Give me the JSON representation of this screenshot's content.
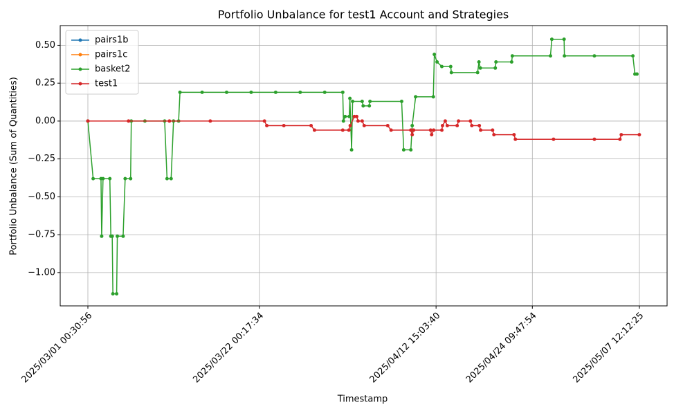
{
  "chart_data": {
    "type": "line",
    "title": "Portfolio Unbalance for test1 Account and Strategies",
    "x_label": "Timestamp",
    "y_label": "Portfolio Unbalance (Sum of Quantities)",
    "grid": true,
    "legend": "upper left",
    "xlim": [
      "2025/02/25 15:15:00",
      "2025/05/10 21:30:00"
    ],
    "xticks": [
      "2025/03/01 00:30:56",
      "2025/03/22 00:17:34",
      "2025/04/12 15:03:40",
      "2025/04/24 09:47:54",
      "2025/05/07 12:12:25"
    ],
    "ylim": [
      -1.22,
      0.63
    ],
    "yticks": [
      {
        "value": 0.5,
        "label": "0.50"
      },
      {
        "value": 0.25,
        "label": "0.25"
      },
      {
        "value": 0,
        "label": "0.00"
      },
      {
        "value": -0.25,
        "label": "−0.25"
      },
      {
        "value": -0.5,
        "label": "−0.50"
      },
      {
        "value": -0.75,
        "label": "−0.75"
      },
      {
        "value": -1.0,
        "label": "−1.00"
      }
    ],
    "series": [
      {
        "name": "pairs1b",
        "color": "#1f77b4",
        "x": [],
        "values": []
      },
      {
        "name": "pairs1c",
        "color": "#ff7f0e",
        "x": [],
        "values": []
      },
      {
        "name": "basket2",
        "color": "#2ca02c",
        "x": [
          "2025/03/01 00:30:56",
          "2025/03/01 16:00:00",
          "2025/03/02 15:00:00",
          "2025/03/02 17:00:00",
          "2025/03/02 21:00:00",
          "2025/03/03 17:00:00",
          "2025/03/03 20:00:00",
          "2025/03/04 00:00:00",
          "2025/03/04 02:00:00",
          "2025/03/04 13:00:00",
          "2025/03/04 15:00:00",
          "2025/03/05 08:00:00",
          "2025/03/05 14:00:00",
          "2025/03/06 06:00:00",
          "2025/03/06 08:00:00",
          "2025/03/08 00:00:00",
          "2025/03/10 10:00:00",
          "2025/03/10 17:00:00",
          "2025/03/11 05:00:00",
          "2025/03/11 12:00:00",
          "2025/03/12 03:00:00",
          "2025/03/12 07:00:00",
          "2025/03/15 00:00:00",
          "2025/03/18 00:00:00",
          "2025/03/21 00:00:00",
          "2025/03/24 00:00:00",
          "2025/03/27 00:00:00",
          "2025/03/30 00:00:00",
          "2025/04/01 05:00:00",
          "2025/04/01 07:00:00",
          "2025/04/01 12:00:00",
          "2025/04/02 00:00:00",
          "2025/04/02 02:00:00",
          "2025/04/02 07:00:00",
          "2025/04/02 10:00:00",
          "2025/04/03 14:00:00",
          "2025/04/03 17:00:00",
          "2025/04/04 11:00:00",
          "2025/04/04 13:00:00",
          "2025/04/08 10:00:00",
          "2025/04/08 16:00:00",
          "2025/04/09 13:00:00",
          "2025/04/09 17:00:00",
          "2025/04/10 03:00:00",
          "2025/04/12 07:00:00",
          "2025/04/12 10:00:00",
          "2025/04/12 18:00:00",
          "2025/04/13 08:00:00",
          "2025/04/14 10:00:00",
          "2025/04/14 12:00:00",
          "2025/04/17 17:00:00",
          "2025/04/17 21:00:00",
          "2025/04/18 01:00:00",
          "2025/04/19 21:00:00",
          "2025/04/19 23:00:00",
          "2025/04/21 21:00:00",
          "2025/04/21 23:00:00",
          "2025/04/26 15:00:00",
          "2025/04/26 19:00:00",
          "2025/04/28 07:00:00",
          "2025/04/28 08:00:00",
          "2025/05/02 00:00:00",
          "2025/05/06 17:00:00",
          "2025/05/06 23:00:00",
          "2025/05/07 05:00:00"
        ],
        "values": [
          0,
          -0.38,
          -0.38,
          -0.76,
          -0.38,
          -0.38,
          -0.76,
          -0.76,
          -1.14,
          -1.14,
          -0.76,
          -0.76,
          -0.38,
          -0.38,
          0,
          0,
          0,
          -0.38,
          -0.38,
          0,
          0,
          0.19,
          0.19,
          0.19,
          0.19,
          0.19,
          0.19,
          0.19,
          0.19,
          0,
          0.03,
          0.03,
          0.15,
          -0.19,
          0.13,
          0.13,
          0.1,
          0.1,
          0.13,
          0.13,
          -0.19,
          -0.19,
          -0.03,
          0.16,
          0.16,
          0.44,
          0.39,
          0.36,
          0.36,
          0.32,
          0.32,
          0.39,
          0.35,
          0.35,
          0.39,
          0.39,
          0.43,
          0.43,
          0.54,
          0.54,
          0.43,
          0.43,
          0.43,
          0.31,
          0.31
        ]
      },
      {
        "name": "test1",
        "color": "#d62728",
        "x": [
          "2025/03/01 00:30:56",
          "2025/03/06 00:00:00",
          "2025/03/11 00:00:00",
          "2025/03/16 00:00:00",
          "2025/03/22 15:00:00",
          "2025/03/22 22:00:00",
          "2025/03/25 00:00:00",
          "2025/03/28 08:00:00",
          "2025/03/28 18:00:00",
          "2025/04/01 05:00:00",
          "2025/04/01 23:00:00",
          "2025/04/02 03:00:00",
          "2025/04/02 15:00:00",
          "2025/04/02 22:00:00",
          "2025/04/03 02:00:00",
          "2025/04/03 14:00:00",
          "2025/04/03 20:00:00",
          "2025/04/06 17:00:00",
          "2025/04/07 03:00:00",
          "2025/04/09 13:00:00",
          "2025/04/09 17:00:00",
          "2025/04/09 21:00:00",
          "2025/04/11 23:00:00",
          "2025/04/12 02:00:00",
          "2025/04/12 08:00:00",
          "2025/04/13 08:00:00",
          "2025/04/13 10:00:00",
          "2025/04/13 18:00:00",
          "2025/04/14 00:00:00",
          "2025/04/15 05:00:00",
          "2025/04/15 09:00:00",
          "2025/04/16 20:00:00",
          "2025/04/17 00:00:00",
          "2025/04/17 22:00:00",
          "2025/04/18 02:00:00",
          "2025/04/19 13:00:00",
          "2025/04/19 17:00:00",
          "2025/04/22 04:00:00",
          "2025/04/22 08:00:00",
          "2025/04/27 00:00:00",
          "2025/05/02 00:00:00",
          "2025/05/05 03:00:00",
          "2025/05/05 07:00:00",
          "2025/05/07 12:00:00"
        ],
        "values": [
          0,
          0,
          0,
          0,
          0,
          -0.03,
          -0.03,
          -0.03,
          -0.06,
          -0.06,
          -0.06,
          -0.03,
          0.03,
          0.03,
          0,
          0,
          -0.03,
          -0.03,
          -0.06,
          -0.06,
          -0.09,
          -0.06,
          -0.06,
          -0.09,
          -0.06,
          -0.06,
          -0.03,
          0,
          -0.03,
          -0.03,
          0,
          0,
          -0.03,
          -0.03,
          -0.06,
          -0.06,
          -0.09,
          -0.09,
          -0.12,
          -0.12,
          -0.12,
          -0.12,
          -0.09,
          -0.09
        ]
      }
    ]
  }
}
